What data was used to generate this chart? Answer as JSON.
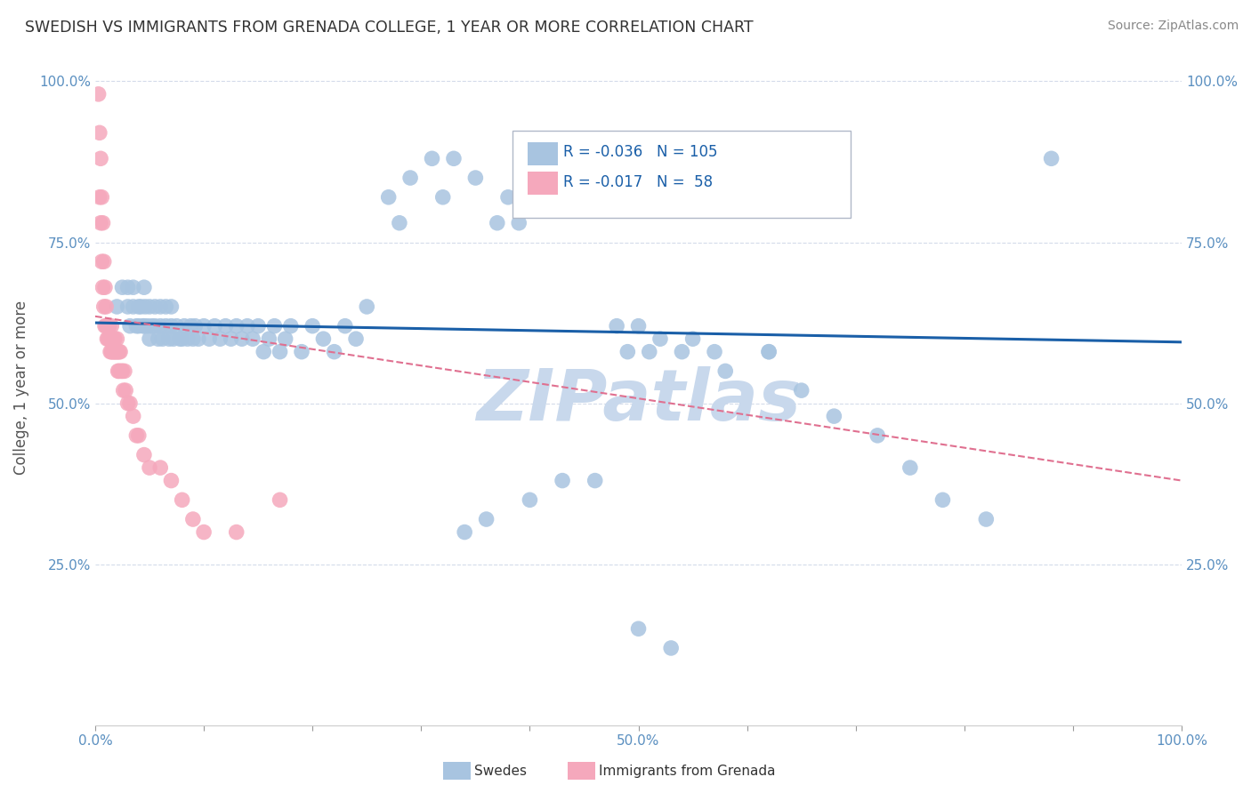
{
  "title": "SWEDISH VS IMMIGRANTS FROM GRENADA COLLEGE, 1 YEAR OR MORE CORRELATION CHART",
  "source": "Source: ZipAtlas.com",
  "ylabel": "College, 1 year or more",
  "blue_color": "#a8c4e0",
  "pink_color": "#f5a8bc",
  "trend_blue_color": "#1a5fa8",
  "trend_pink_color": "#e07090",
  "watermark": "ZIPatlas",
  "watermark_color": "#c8d8ec",
  "legend_label_blue": "Swedes",
  "legend_label_pink": "Immigrants from Grenada",
  "blue_r": "R = -0.036",
  "blue_n": "N = 105",
  "pink_r": "R = -0.017",
  "pink_n": "N =  58",
  "blue_x": [
    0.02,
    0.025,
    0.03,
    0.03,
    0.032,
    0.035,
    0.035,
    0.038,
    0.04,
    0.04,
    0.042,
    0.044,
    0.045,
    0.045,
    0.046,
    0.048,
    0.05,
    0.05,
    0.052,
    0.055,
    0.055,
    0.058,
    0.06,
    0.06,
    0.062,
    0.065,
    0.065,
    0.068,
    0.07,
    0.07,
    0.072,
    0.075,
    0.078,
    0.08,
    0.082,
    0.085,
    0.088,
    0.09,
    0.092,
    0.095,
    0.1,
    0.105,
    0.11,
    0.115,
    0.12,
    0.125,
    0.13,
    0.135,
    0.14,
    0.145,
    0.15,
    0.155,
    0.16,
    0.165,
    0.17,
    0.175,
    0.18,
    0.19,
    0.2,
    0.21,
    0.22,
    0.23,
    0.24,
    0.25,
    0.27,
    0.28,
    0.29,
    0.31,
    0.32,
    0.33,
    0.35,
    0.37,
    0.38,
    0.39,
    0.41,
    0.42,
    0.43,
    0.44,
    0.45,
    0.47,
    0.48,
    0.49,
    0.5,
    0.51,
    0.52,
    0.54,
    0.55,
    0.57,
    0.58,
    0.62,
    0.62,
    0.65,
    0.68,
    0.72,
    0.75,
    0.78,
    0.82,
    0.88,
    0.5,
    0.53,
    0.46,
    0.43,
    0.4,
    0.36,
    0.34
  ],
  "blue_y": [
    0.65,
    0.68,
    0.65,
    0.68,
    0.62,
    0.65,
    0.68,
    0.62,
    0.65,
    0.62,
    0.65,
    0.62,
    0.68,
    0.62,
    0.65,
    0.62,
    0.65,
    0.6,
    0.62,
    0.65,
    0.62,
    0.6,
    0.65,
    0.62,
    0.6,
    0.65,
    0.62,
    0.6,
    0.65,
    0.62,
    0.6,
    0.62,
    0.6,
    0.6,
    0.62,
    0.6,
    0.62,
    0.6,
    0.62,
    0.6,
    0.62,
    0.6,
    0.62,
    0.6,
    0.62,
    0.6,
    0.62,
    0.6,
    0.62,
    0.6,
    0.62,
    0.58,
    0.6,
    0.62,
    0.58,
    0.6,
    0.62,
    0.58,
    0.62,
    0.6,
    0.58,
    0.62,
    0.6,
    0.65,
    0.82,
    0.78,
    0.85,
    0.88,
    0.82,
    0.88,
    0.85,
    0.78,
    0.82,
    0.78,
    0.85,
    0.88,
    0.88,
    0.88,
    0.85,
    0.85,
    0.62,
    0.58,
    0.62,
    0.58,
    0.6,
    0.58,
    0.6,
    0.58,
    0.55,
    0.58,
    0.58,
    0.52,
    0.48,
    0.45,
    0.4,
    0.35,
    0.32,
    0.88,
    0.15,
    0.12,
    0.38,
    0.38,
    0.35,
    0.32,
    0.3
  ],
  "pink_x": [
    0.003,
    0.004,
    0.004,
    0.005,
    0.005,
    0.006,
    0.006,
    0.007,
    0.007,
    0.008,
    0.008,
    0.009,
    0.009,
    0.01,
    0.01,
    0.011,
    0.011,
    0.012,
    0.012,
    0.013,
    0.013,
    0.014,
    0.014,
    0.015,
    0.015,
    0.016,
    0.016,
    0.017,
    0.017,
    0.018,
    0.018,
    0.019,
    0.02,
    0.02,
    0.021,
    0.021,
    0.022,
    0.022,
    0.023,
    0.024,
    0.025,
    0.026,
    0.027,
    0.028,
    0.03,
    0.032,
    0.035,
    0.038,
    0.04,
    0.045,
    0.05,
    0.06,
    0.07,
    0.08,
    0.09,
    0.1,
    0.13,
    0.17
  ],
  "pink_y": [
    0.98,
    0.92,
    0.82,
    0.88,
    0.78,
    0.82,
    0.72,
    0.78,
    0.68,
    0.72,
    0.65,
    0.68,
    0.62,
    0.65,
    0.62,
    0.6,
    0.62,
    0.6,
    0.62,
    0.6,
    0.62,
    0.58,
    0.6,
    0.62,
    0.58,
    0.6,
    0.58,
    0.6,
    0.58,
    0.6,
    0.58,
    0.58,
    0.6,
    0.58,
    0.58,
    0.55,
    0.58,
    0.55,
    0.58,
    0.55,
    0.55,
    0.52,
    0.55,
    0.52,
    0.5,
    0.5,
    0.48,
    0.45,
    0.45,
    0.42,
    0.4,
    0.4,
    0.38,
    0.35,
    0.32,
    0.3,
    0.3,
    0.35
  ],
  "blue_trend": [
    0.0,
    1.0,
    0.625,
    0.595
  ],
  "pink_trend": [
    0.0,
    1.0,
    0.635,
    0.38
  ],
  "xlim": [
    0.0,
    1.0
  ],
  "ylim": [
    0.0,
    1.05
  ],
  "xticks": [
    0.0,
    0.1,
    0.2,
    0.3,
    0.4,
    0.5,
    0.6,
    0.7,
    0.8,
    0.9,
    1.0
  ],
  "yticks": [
    0.25,
    0.5,
    0.75,
    1.0
  ],
  "xtick_labels": [
    "0.0%",
    "",
    "",
    "",
    "",
    "50.0%",
    "",
    "",
    "",
    "",
    "100.0%"
  ],
  "ytick_labels": [
    "25.0%",
    "50.0%",
    "75.0%",
    "100.0%"
  ]
}
